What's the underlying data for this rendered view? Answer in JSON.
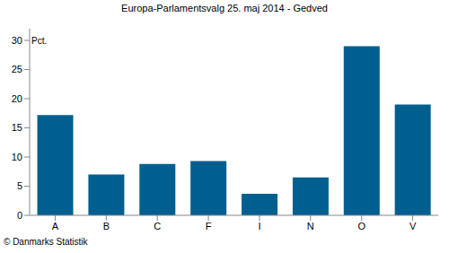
{
  "chart_data": {
    "type": "bar",
    "title": "Europa-Parlamentsvalg 25. maj 2014 - Gedved",
    "ylabel": "Pct.",
    "source": "© Danmarks Statistik",
    "categories": [
      "A",
      "B",
      "C",
      "F",
      "I",
      "N",
      "O",
      "V"
    ],
    "values": [
      17.2,
      7.0,
      8.8,
      9.3,
      3.7,
      6.5,
      29.0,
      19.0
    ],
    "color": "#005f8f",
    "ylim": [
      0,
      32
    ],
    "yticks": [
      0,
      5,
      10,
      15,
      20,
      25,
      30
    ],
    "grid": false
  }
}
